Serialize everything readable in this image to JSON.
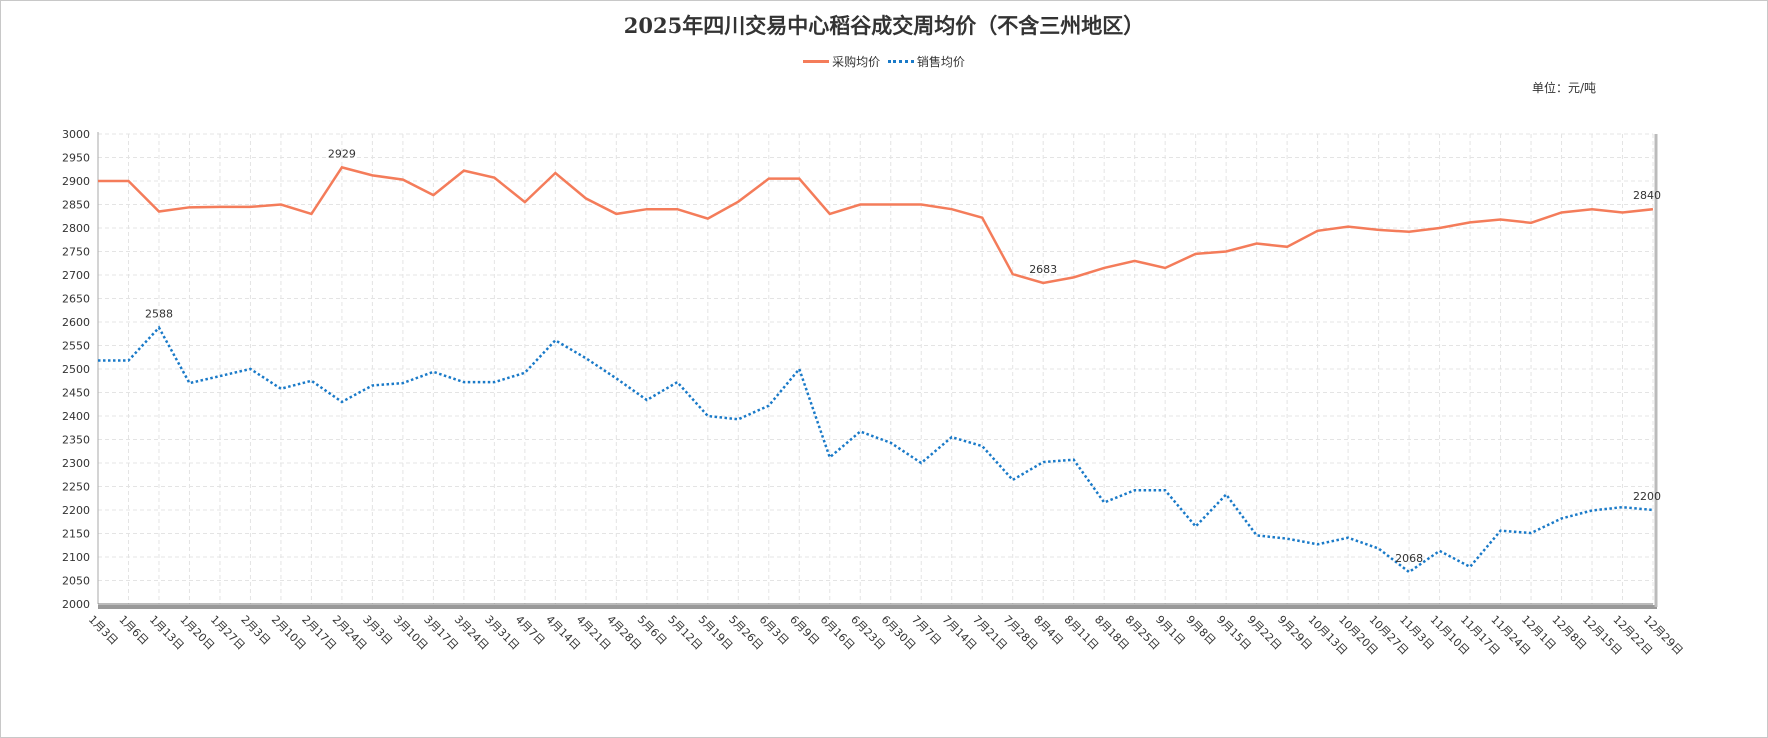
{
  "chart_data": {
    "type": "line",
    "title": "2025年四川交易中心稻谷成交周均价（不含三州地区）",
    "unit_label": "单位：元/吨",
    "xlabel": "",
    "ylabel": "",
    "ylim": [
      2000,
      3000
    ],
    "yticks": [
      2000,
      2050,
      2100,
      2150,
      2200,
      2250,
      2300,
      2350,
      2400,
      2450,
      2500,
      2550,
      2600,
      2650,
      2700,
      2750,
      2800,
      2850,
      2900,
      2950,
      3000
    ],
    "grid": true,
    "legend_position": "top-center",
    "categories": [
      "1月3日",
      "1月6日",
      "1月13日",
      "1月20日",
      "1月27日",
      "2月3日",
      "2月10日",
      "2月17日",
      "2月24日",
      "3月3日",
      "3月10日",
      "3月17日",
      "3月24日",
      "3月31日",
      "4月7日",
      "4月14日",
      "4月21日",
      "4月28日",
      "5月6日",
      "5月12日",
      "5月19日",
      "5月26日",
      "6月3日",
      "6月9日",
      "6月16日",
      "6月23日",
      "6月30日",
      "7月7日",
      "7月14日",
      "7月21日",
      "7月28日",
      "8月4日",
      "8月11日",
      "8月18日",
      "8月25日",
      "9月1日",
      "9月8日",
      "9月15日",
      "9月22日",
      "9月29日",
      "10月13日",
      "10月20日",
      "10月27日",
      "11月3日",
      "11月10日",
      "11月17日",
      "11月24日",
      "12月1日",
      "12月8日",
      "12月15日",
      "12月22日",
      "12月29日"
    ],
    "series": [
      {
        "name": "采购均价",
        "color": "#f47c5a",
        "style": "solid",
        "values": [
          2900,
          2900,
          2835,
          2844,
          2845,
          2845,
          2850,
          2830,
          2929,
          2912,
          2903,
          2870,
          2922,
          2907,
          2855,
          2917,
          2863,
          2830,
          2840,
          2840,
          2820,
          2856,
          2905,
          2905,
          2830,
          2850,
          2850,
          2850,
          2840,
          2822,
          2702,
          2683,
          2695,
          2715,
          2730,
          2715,
          2745,
          2750,
          2767,
          2760,
          2794,
          2803,
          2796,
          2792,
          2800,
          2812,
          2818,
          2811,
          2833,
          2840,
          2833,
          2840
        ],
        "labels": [
          {
            "index": 8,
            "text": "2929"
          },
          {
            "index": 31,
            "text": "2683"
          },
          {
            "index": 51,
            "text": "2840"
          }
        ]
      },
      {
        "name": "销售均价",
        "color": "#1a7ac8",
        "style": "dotted",
        "values": [
          2518,
          2518,
          2588,
          2470,
          2485,
          2500,
          2458,
          2475,
          2430,
          2465,
          2470,
          2494,
          2472,
          2472,
          2492,
          2561,
          2523,
          2480,
          2434,
          2472,
          2400,
          2393,
          2422,
          2500,
          2312,
          2367,
          2343,
          2300,
          2355,
          2336,
          2264,
          2302,
          2307,
          2216,
          2242,
          2242,
          2165,
          2233,
          2146,
          2139,
          2127,
          2141,
          2118,
          2068,
          2113,
          2079,
          2156,
          2151,
          2182,
          2199,
          2206,
          2200
        ],
        "labels": [
          {
            "index": 2,
            "text": "2588"
          },
          {
            "index": 43,
            "text": "2068"
          },
          {
            "index": 51,
            "text": "2200"
          }
        ]
      }
    ]
  }
}
